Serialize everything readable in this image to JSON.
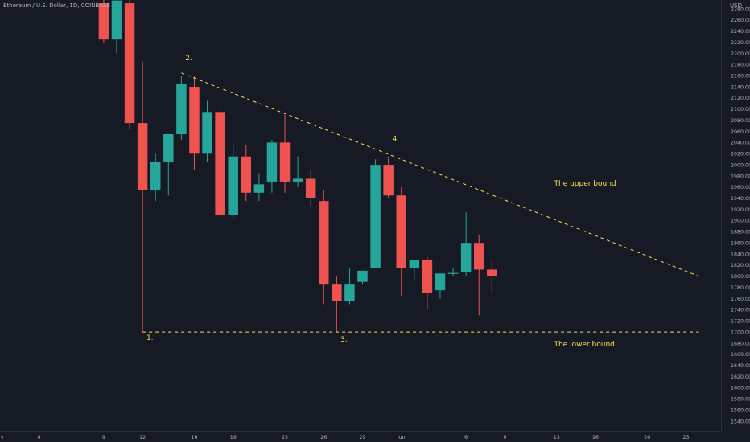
{
  "header": {
    "title": "Ethereum / U.S. Dollar, 1D, COINBASE",
    "currency": "USD"
  },
  "colors": {
    "background": "#161a25",
    "up": "#26a69a",
    "down": "#ef5350",
    "annotation": "#f5e34b",
    "axis_text": "#b2b5be"
  },
  "chart_data": {
    "type": "candlestick",
    "ylim": [
      1530,
      2280
    ],
    "y_ticks": [
      1540,
      1560,
      1580,
      1600,
      1620,
      1640,
      1660,
      1680,
      1700,
      1720,
      1740,
      1760,
      1780,
      1800,
      1820,
      1840,
      1860,
      1880,
      1900,
      1920,
      1940,
      1960,
      1980,
      2000,
      2020,
      2040,
      2060,
      2080,
      2100,
      2120,
      2140,
      2160,
      2180,
      2200,
      2220,
      2240,
      2260,
      2280
    ],
    "x_ticks": [
      {
        "day": -4,
        "label": "y"
      },
      {
        "day": 0,
        "label": "4"
      },
      {
        "day": 5,
        "label": "9"
      },
      {
        "day": 8,
        "label": "12"
      },
      {
        "day": 12,
        "label": "16"
      },
      {
        "day": 15,
        "label": "19"
      },
      {
        "day": 19,
        "label": "23"
      },
      {
        "day": 22,
        "label": "26"
      },
      {
        "day": 25,
        "label": "29"
      },
      {
        "day": 28,
        "label": "Jun"
      },
      {
        "day": 33,
        "label": "6"
      },
      {
        "day": 36,
        "label": "9"
      },
      {
        "day": 40,
        "label": "13"
      },
      {
        "day": 43,
        "label": "16"
      },
      {
        "day": 47,
        "label": "20"
      },
      {
        "day": 50,
        "label": "23"
      }
    ],
    "candles": [
      {
        "day": 5,
        "open": 2290,
        "high": 2300,
        "low": 2220,
        "close": 2225
      },
      {
        "day": 6,
        "open": 2225,
        "high": 2300,
        "low": 2200,
        "close": 2295
      },
      {
        "day": 7,
        "open": 2290,
        "high": 2300,
        "low": 2065,
        "close": 2075
      },
      {
        "day": 8,
        "open": 2075,
        "high": 2185,
        "low": 1700,
        "close": 1955
      },
      {
        "day": 9,
        "open": 1955,
        "high": 2020,
        "low": 1935,
        "close": 2005
      },
      {
        "day": 10,
        "open": 2005,
        "high": 2055,
        "low": 1945,
        "close": 2055
      },
      {
        "day": 11,
        "open": 2055,
        "high": 2160,
        "low": 2045,
        "close": 2145
      },
      {
        "day": 12,
        "open": 2140,
        "high": 2160,
        "low": 1990,
        "close": 2020
      },
      {
        "day": 13,
        "open": 2020,
        "high": 2115,
        "low": 2005,
        "close": 2095
      },
      {
        "day": 14,
        "open": 2095,
        "high": 2105,
        "low": 1905,
        "close": 1910
      },
      {
        "day": 15,
        "open": 1910,
        "high": 2035,
        "low": 1905,
        "close": 2015
      },
      {
        "day": 16,
        "open": 2015,
        "high": 2035,
        "low": 1935,
        "close": 1950
      },
      {
        "day": 17,
        "open": 1950,
        "high": 1985,
        "low": 1935,
        "close": 1965
      },
      {
        "day": 18,
        "open": 1970,
        "high": 2045,
        "low": 1950,
        "close": 2040
      },
      {
        "day": 19,
        "open": 2040,
        "high": 2090,
        "low": 1950,
        "close": 1970
      },
      {
        "day": 20,
        "open": 1970,
        "high": 2015,
        "low": 1960,
        "close": 1975
      },
      {
        "day": 21,
        "open": 1975,
        "high": 1990,
        "low": 1925,
        "close": 1940
      },
      {
        "day": 22,
        "open": 1935,
        "high": 1955,
        "low": 1750,
        "close": 1785
      },
      {
        "day": 23,
        "open": 1785,
        "high": 1800,
        "low": 1700,
        "close": 1755
      },
      {
        "day": 24,
        "open": 1755,
        "high": 1815,
        "low": 1750,
        "close": 1785
      },
      {
        "day": 25,
        "open": 1790,
        "high": 1810,
        "low": 1785,
        "close": 1810
      },
      {
        "day": 26,
        "open": 1815,
        "high": 2010,
        "low": 1815,
        "close": 2000
      },
      {
        "day": 27,
        "open": 2000,
        "high": 2015,
        "low": 1940,
        "close": 1945
      },
      {
        "day": 28,
        "open": 1945,
        "high": 1960,
        "low": 1765,
        "close": 1815
      },
      {
        "day": 29,
        "open": 1815,
        "high": 1830,
        "low": 1795,
        "close": 1830
      },
      {
        "day": 30,
        "open": 1830,
        "high": 1835,
        "low": 1740,
        "close": 1770
      },
      {
        "day": 31,
        "open": 1775,
        "high": 1800,
        "low": 1760,
        "close": 1805
      },
      {
        "day": 32,
        "open": 1805,
        "high": 1815,
        "low": 1800,
        "close": 1806
      },
      {
        "day": 33,
        "open": 1808,
        "high": 1915,
        "low": 1800,
        "close": 1860
      },
      {
        "day": 34,
        "open": 1860,
        "high": 1875,
        "low": 1730,
        "close": 1812
      },
      {
        "day": 35,
        "open": 1812,
        "high": 1830,
        "low": 1770,
        "close": 1800
      }
    ],
    "lines": [
      {
        "name": "upper-bound",
        "from": {
          "day": 11,
          "price": 2165
        },
        "to": {
          "day": 51,
          "price": 1800
        }
      },
      {
        "name": "lower-bound",
        "from": {
          "day": 8,
          "price": 1700
        },
        "to": {
          "day": 51,
          "price": 1700
        }
      }
    ],
    "annotations": [
      {
        "text": "1.",
        "day": 8.3,
        "price": 1686
      },
      {
        "text": "2.",
        "day": 11.3,
        "price": 2188
      },
      {
        "text": "3.",
        "day": 23.3,
        "price": 1683
      },
      {
        "text": "4.",
        "day": 27.3,
        "price": 2043
      },
      {
        "text": "The upper bound",
        "day": 39.8,
        "price": 1963
      },
      {
        "text": "The lower bound",
        "day": 39.8,
        "price": 1674
      }
    ]
  }
}
